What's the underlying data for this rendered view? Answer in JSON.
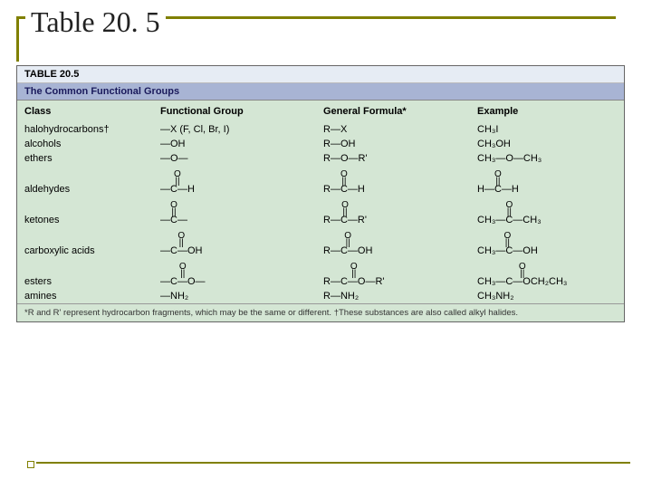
{
  "slide": {
    "title": "Table 20. 5"
  },
  "table": {
    "label": "TABLE 20.5",
    "caption": "The Common Functional Groups",
    "headers": {
      "class": "Class",
      "fg": "Functional Group",
      "gf": "General Formula*",
      "ex": "Example"
    },
    "rows": {
      "halo": {
        "class": "halohydrocarbons†",
        "fg": "—X (F, Cl, Br, I)",
        "gf": "R—X",
        "ex": "CH₃I"
      },
      "alc": {
        "class": "alcohols",
        "fg": "—OH",
        "gf": "R—OH",
        "ex": "CH₃OH"
      },
      "eth": {
        "class": "ethers",
        "fg": "—O—",
        "gf": "R—O—R'",
        "ex": "CH₃—O—CH₃"
      },
      "ald": {
        "class": "aldehydes",
        "fg_top": "O",
        "fg_bot": "—C—H",
        "gf_top": "O",
        "gf_bot": "R—C—H",
        "ex_top": "O",
        "ex_bot": "H—C—H"
      },
      "ket": {
        "class": "ketones",
        "fg_top": "O",
        "fg_bot": "—C—",
        "gf_top": "O",
        "gf_bot": "R—C—R'",
        "ex_top": "O",
        "ex_bot": "CH₃—C—CH₃"
      },
      "acid": {
        "class": "carboxylic acids",
        "fg_top": "O",
        "fg_bot": "—C—OH",
        "gf_top": "O",
        "gf_bot": "R—C—OH",
        "ex_top": "O",
        "ex_bot": "CH₃—C—OH"
      },
      "est": {
        "class": "esters",
        "fg_top": "O",
        "fg_bot": "—C—O—",
        "gf_top": "O",
        "gf_bot": "R—C—O—R'",
        "ex_top": "O",
        "ex_bot": "CH₃—C—OCH₂CH₃"
      },
      "amn": {
        "class": "amines",
        "fg": "—NH₂",
        "gf": "R—NH₂",
        "ex": "CH₃NH₂"
      }
    },
    "footnote": "*R and R' represent hydrocarbon fragments, which may be the same or different. †These substances are also called alkyl halides."
  },
  "colors": {
    "accent": "#808000",
    "table_bg": "#d4e6d4",
    "header1_bg": "#e6ecf4",
    "header2_bg": "#a8b4d4"
  }
}
